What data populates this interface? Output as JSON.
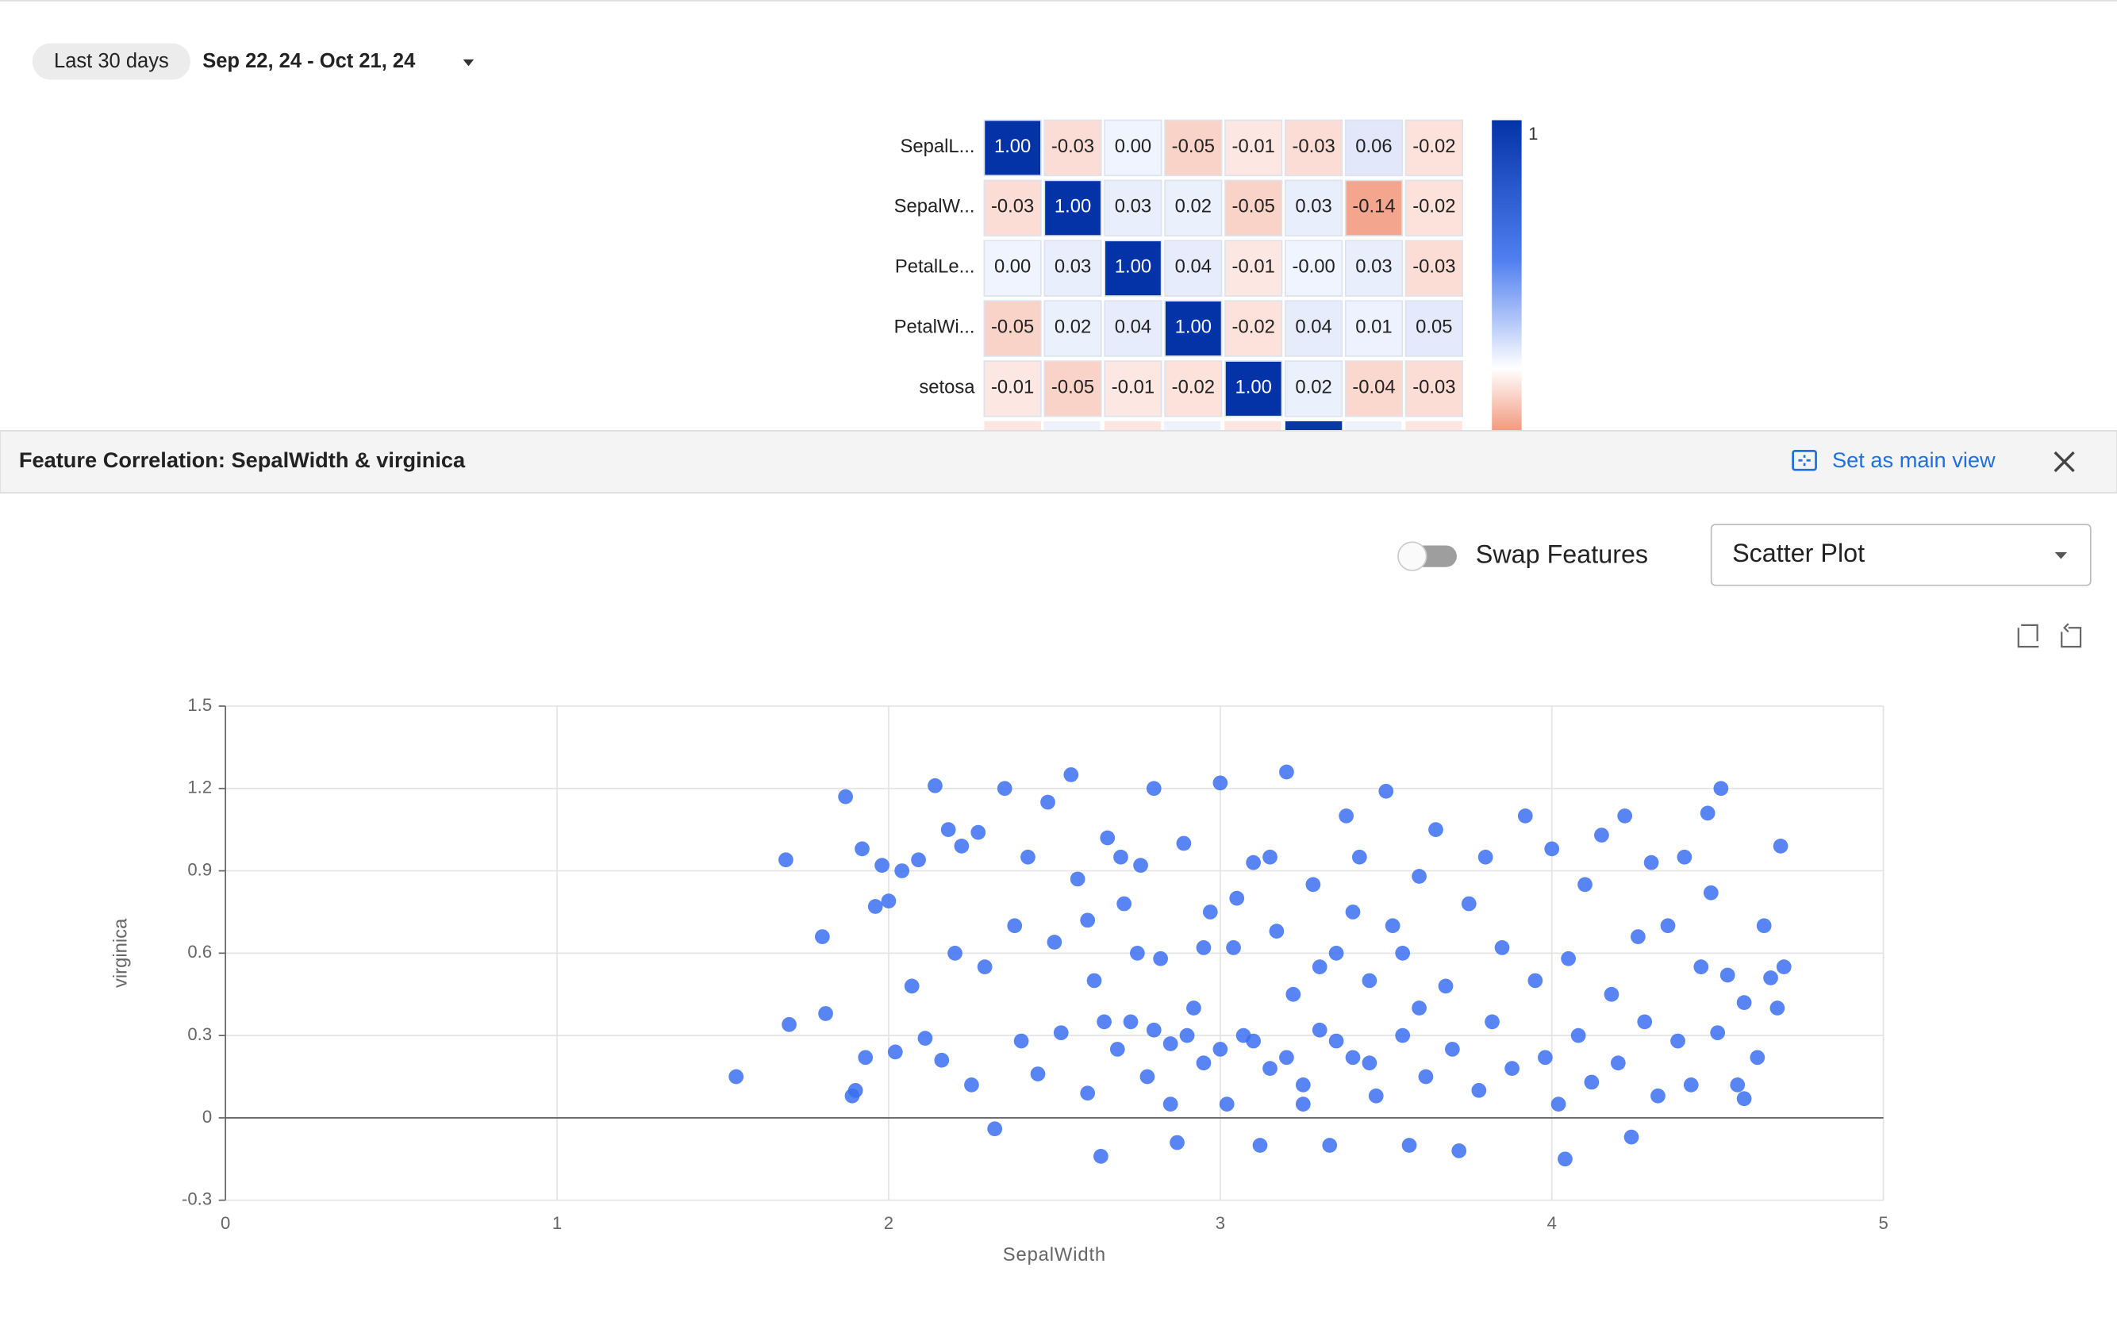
{
  "header": {
    "range_chip": "Last 30 days",
    "date_range": "Sep 22, 24 - Oct 21, 24"
  },
  "heatmap": {
    "rows": [
      {
        "label": "SepalL...",
        "values": [
          1.0,
          -0.03,
          0.0,
          -0.05,
          -0.01,
          -0.03,
          0.06,
          -0.02
        ],
        "value_labels": [
          "1.00",
          "-0.03",
          "0.00",
          "-0.05",
          "-0.01",
          "-0.03",
          "0.06",
          "-0.02"
        ]
      },
      {
        "label": "SepalW...",
        "values": [
          -0.03,
          1.0,
          0.03,
          0.02,
          -0.05,
          0.03,
          -0.14,
          -0.02
        ],
        "value_labels": [
          "-0.03",
          "1.00",
          "0.03",
          "0.02",
          "-0.05",
          "0.03",
          "-0.14",
          "-0.02"
        ]
      },
      {
        "label": "PetalLe...",
        "values": [
          0.0,
          0.03,
          1.0,
          0.04,
          -0.01,
          0,
          0.03,
          -0.03
        ],
        "value_labels": [
          "0.00",
          "0.03",
          "1.00",
          "0.04",
          "-0.01",
          "-0.00",
          "0.03",
          "-0.03"
        ]
      },
      {
        "label": "PetalWi...",
        "values": [
          -0.05,
          0.02,
          0.04,
          1.0,
          -0.02,
          0.04,
          0.01,
          0.05
        ],
        "value_labels": [
          "-0.05",
          "0.02",
          "0.04",
          "1.00",
          "-0.02",
          "0.04",
          "0.01",
          "0.05"
        ]
      },
      {
        "label": "setosa",
        "values": [
          -0.01,
          -0.05,
          -0.01,
          -0.02,
          1.0,
          0.02,
          -0.04,
          -0.03
        ],
        "value_labels": [
          "-0.01",
          "-0.05",
          "-0.01",
          "-0.02",
          "1.00",
          "0.02",
          "-0.04",
          "-0.03"
        ]
      }
    ],
    "colorbar_ticks": [
      1
    ]
  },
  "panel": {
    "title": "Feature Correlation: SepalWidth & virginica",
    "main_view_button": "Set as main view",
    "swap_label": "Swap Features",
    "chart_type": "Scatter Plot"
  },
  "chart_data": {
    "type": "scatter",
    "x_label": "SepalWidth",
    "y_label": "virginica",
    "color": "#3b6ff2",
    "xlim": [
      0,
      5
    ],
    "ylim": [
      -0.3,
      1.5
    ],
    "xticks": [
      0,
      1,
      2,
      3,
      4,
      5
    ],
    "yticks": [
      -0.3,
      0,
      0.3,
      0.6,
      0.9,
      1.2,
      1.5
    ],
    "grid": true,
    "x": [
      1.54,
      1.69,
      1.7,
      1.8,
      1.81,
      1.87,
      1.89,
      1.9,
      1.92,
      1.93,
      1.96,
      1.98,
      2.0,
      2.02,
      2.04,
      2.07,
      2.09,
      2.11,
      2.14,
      2.16,
      2.18,
      2.2,
      2.22,
      2.25,
      2.27,
      2.29,
      2.32,
      2.35,
      2.38,
      2.4,
      2.42,
      2.45,
      2.48,
      2.5,
      2.52,
      2.55,
      2.57,
      2.6,
      2.62,
      2.64,
      2.66,
      2.69,
      2.71,
      2.73,
      2.76,
      2.78,
      2.8,
      2.82,
      2.85,
      2.87,
      2.89,
      2.92,
      2.95,
      2.97,
      3.0,
      3.02,
      3.04,
      3.07,
      3.1,
      3.12,
      3.15,
      3.17,
      3.2,
      3.22,
      3.25,
      3.28,
      3.3,
      3.33,
      3.35,
      3.38,
      3.4,
      3.42,
      3.45,
      3.47,
      3.5,
      3.52,
      3.55,
      3.57,
      3.6,
      3.62,
      3.65,
      3.68,
      3.7,
      3.72,
      3.75,
      3.78,
      3.8,
      3.82,
      3.85,
      3.88,
      3.92,
      3.95,
      3.98,
      4.0,
      4.02,
      4.04,
      4.05,
      4.08,
      4.1,
      4.12,
      4.15,
      4.18,
      4.2,
      4.22,
      4.24,
      4.26,
      4.28,
      4.3,
      4.32,
      4.35,
      4.38,
      4.4,
      4.42,
      4.45,
      4.47,
      4.48,
      4.5,
      4.51,
      4.53,
      4.56,
      4.58,
      4.62,
      4.64,
      4.66,
      4.68,
      4.69,
      4.7,
      4.58,
      2.9,
      3.0,
      3.1,
      3.2,
      2.8,
      2.95,
      3.05,
      3.15,
      2.7,
      2.6,
      3.3,
      3.4,
      3.25,
      2.85,
      3.35,
      2.75,
      3.45,
      2.65,
      3.55,
      3.6
    ],
    "values": [
      0.15,
      0.94,
      0.34,
      0.66,
      0.38,
      1.17,
      0.08,
      0.1,
      0.98,
      0.22,
      0.77,
      0.92,
      0.79,
      0.24,
      0.9,
      0.48,
      0.94,
      0.29,
      1.21,
      0.21,
      1.05,
      0.6,
      0.99,
      0.12,
      1.04,
      0.55,
      -0.04,
      1.2,
      0.7,
      0.28,
      0.95,
      0.16,
      1.15,
      0.64,
      0.31,
      1.25,
      0.87,
      0.09,
      0.5,
      -0.14,
      1.02,
      0.25,
      0.78,
      0.35,
      0.92,
      0.15,
      1.2,
      0.58,
      0.27,
      -0.09,
      1.0,
      0.4,
      0.2,
      0.75,
      1.22,
      0.05,
      0.62,
      0.3,
      0.93,
      -0.1,
      0.18,
      0.68,
      1.26,
      0.45,
      0.12,
      0.85,
      0.32,
      -0.1,
      0.6,
      1.1,
      0.22,
      0.95,
      0.5,
      0.08,
      1.19,
      0.7,
      0.3,
      -0.1,
      0.88,
      0.15,
      1.05,
      0.48,
      0.25,
      -0.12,
      0.78,
      0.1,
      0.95,
      0.35,
      0.62,
      0.18,
      1.1,
      0.5,
      0.22,
      0.98,
      0.05,
      -0.15,
      0.58,
      0.3,
      0.85,
      0.13,
      1.03,
      0.45,
      0.2,
      1.1,
      -0.07,
      0.66,
      0.35,
      0.93,
      0.08,
      0.7,
      0.28,
      0.95,
      0.12,
      0.55,
      1.11,
      0.82,
      0.31,
      1.2,
      0.52,
      0.12,
      0.42,
      0.22,
      0.7,
      0.51,
      0.4,
      0.99,
      0.55,
      0.07,
      0.3,
      0.25,
      0.28,
      0.22,
      0.32,
      0.62,
      0.8,
      0.95,
      0.95,
      0.72,
      0.55,
      0.75,
      0.05,
      0.05,
      0.28,
      0.6,
      0.2,
      0.35,
      0.6,
      0.4
    ]
  }
}
